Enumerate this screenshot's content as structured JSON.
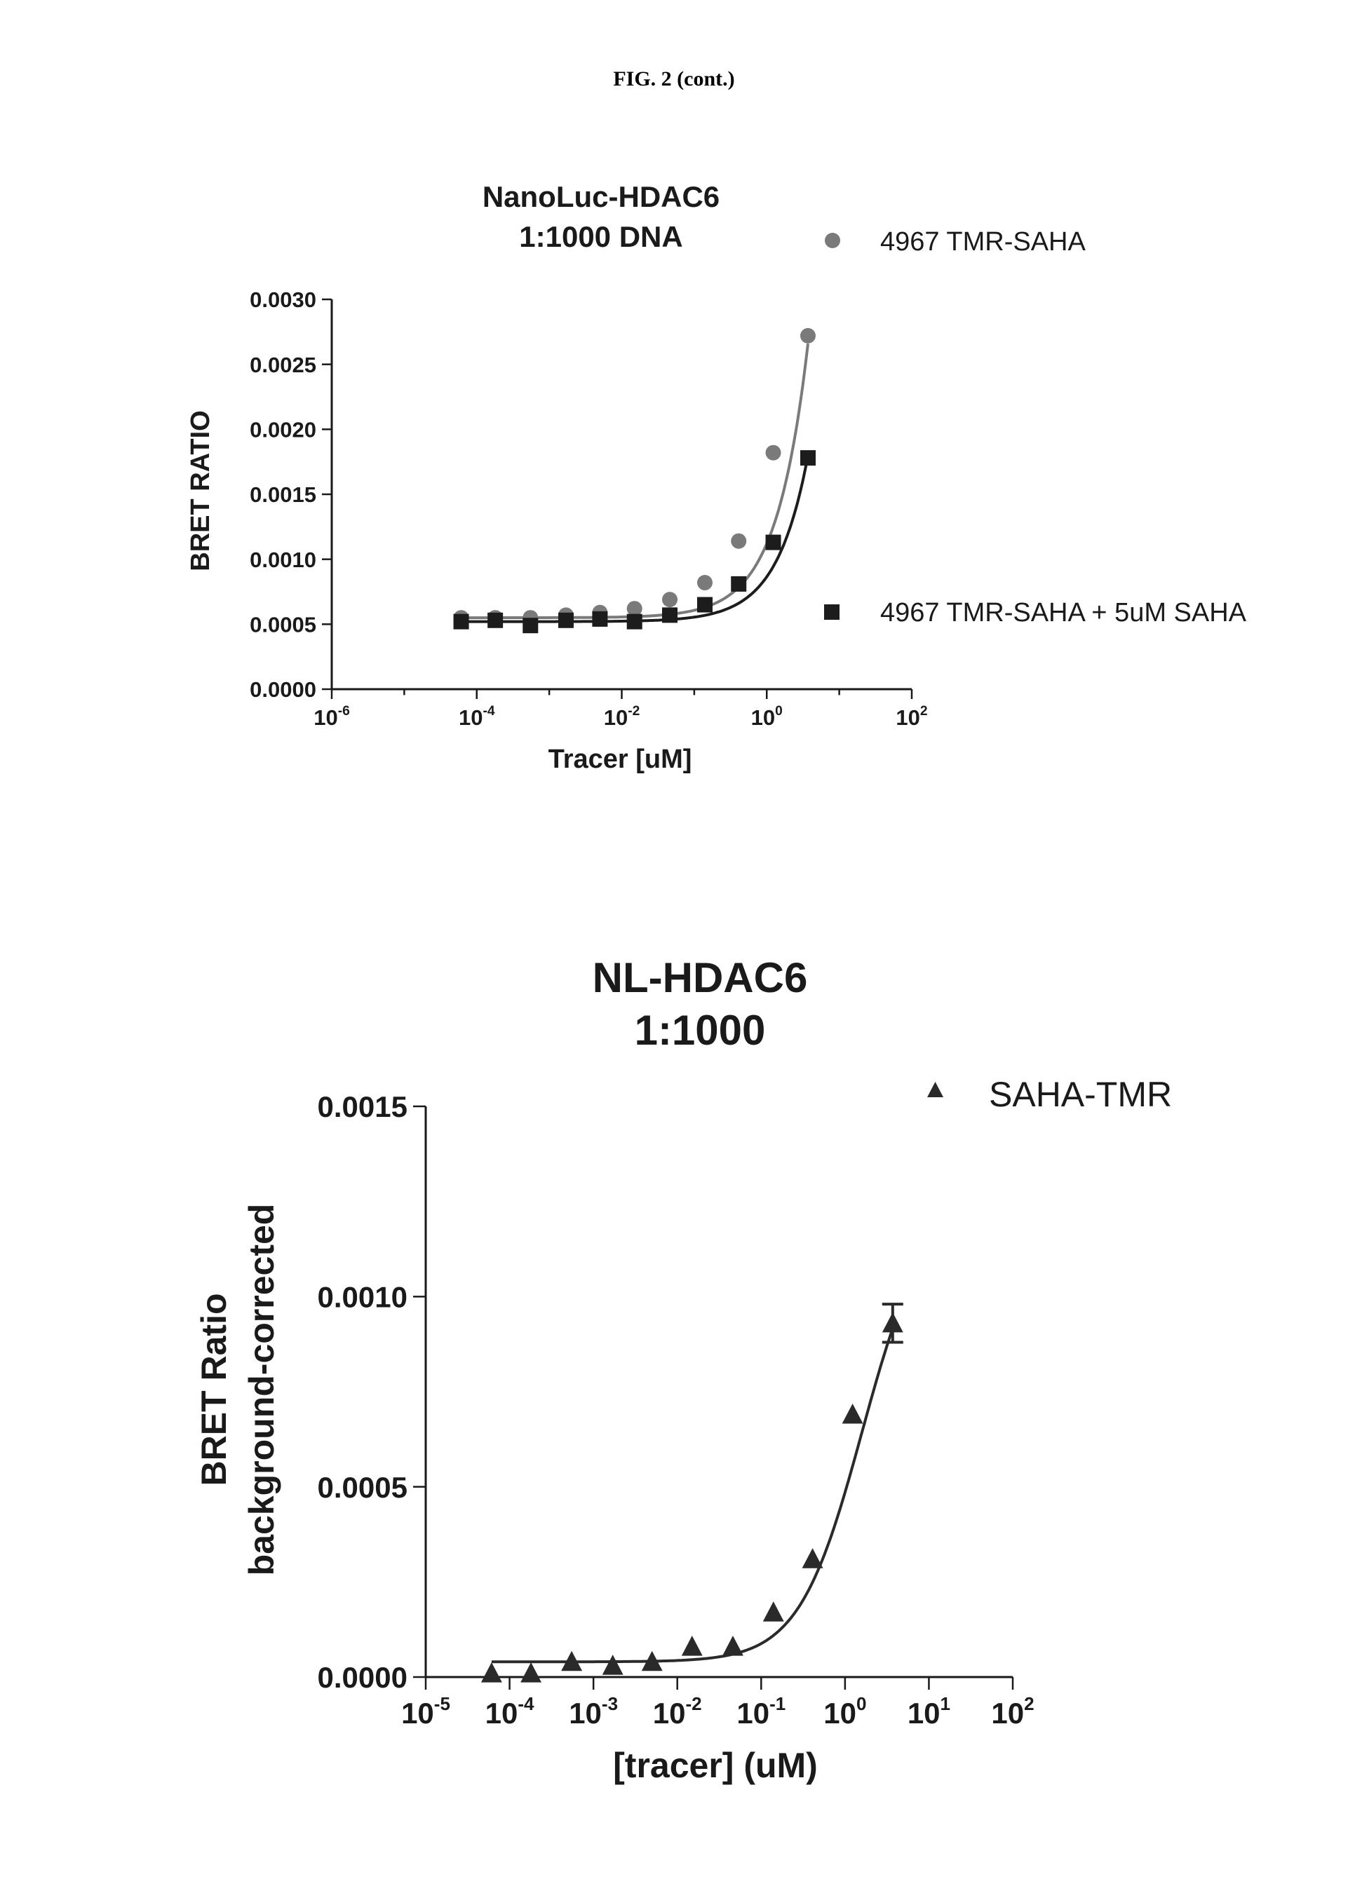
{
  "page": {
    "figure_label": "FIG. 2 (cont.)"
  },
  "chart_data": [
    {
      "type": "scatter",
      "title_lines": [
        "NanoLuc-HDAC6",
        "1:1000 DNA"
      ],
      "xlabel": "Tracer [uM]",
      "ylabel": "BRET RATIO",
      "x_scale": "log",
      "xlim": [
        1e-06,
        100
      ],
      "ylim": [
        0,
        0.003
      ],
      "x_ticks": [
        {
          "value": 1e-06,
          "base": "10",
          "exp": "-6"
        },
        {
          "value": 0.0001,
          "base": "10",
          "exp": "-4"
        },
        {
          "value": 0.01,
          "base": "10",
          "exp": "-2"
        },
        {
          "value": 1,
          "base": "10",
          "exp": "0"
        },
        {
          "value": 100,
          "base": "10",
          "exp": "2"
        }
      ],
      "y_ticks": [
        {
          "value": 0,
          "label": "0.0000"
        },
        {
          "value": 0.0005,
          "label": "0.0005"
        },
        {
          "value": 0.001,
          "label": "0.0010"
        },
        {
          "value": 0.0015,
          "label": "0.0015"
        },
        {
          "value": 0.002,
          "label": "0.0020"
        },
        {
          "value": 0.0025,
          "label": "0.0025"
        },
        {
          "value": 0.003,
          "label": "0.0030"
        }
      ],
      "series": [
        {
          "name": "4967 TMR-SAHA",
          "marker": "circle",
          "color": "#7a7a7a",
          "x": [
            6.1e-05,
            0.00018,
            0.00055,
            0.0017,
            0.005,
            0.015,
            0.046,
            0.14,
            0.41,
            1.23,
            3.7
          ],
          "y": [
            0.00055,
            0.00055,
            0.00055,
            0.00057,
            0.00059,
            0.00062,
            0.00069,
            0.00082,
            0.00114,
            0.00182,
            0.00272
          ],
          "fit": {
            "bottom": 0.00055,
            "slope": 0.00057
          }
        },
        {
          "name": "4967 TMR-SAHA + 5uM SAHA",
          "marker": "square",
          "color": "#1c1c1c",
          "x": [
            6.1e-05,
            0.00018,
            0.00055,
            0.0017,
            0.005,
            0.015,
            0.046,
            0.14,
            0.41,
            1.23,
            3.7
          ],
          "y": [
            0.00052,
            0.00053,
            0.00049,
            0.00053,
            0.00054,
            0.00052,
            0.00057,
            0.00065,
            0.00081,
            0.00113,
            0.00178
          ],
          "fit": {
            "bottom": 0.00052,
            "slope": 0.000345
          }
        }
      ]
    },
    {
      "type": "scatter",
      "title_lines": [
        "NL-HDAC6",
        "1:1000"
      ],
      "xlabel": "[tracer] (uM)",
      "ylabel_lines": [
        "BRET Ratio",
        "background-corrected"
      ],
      "x_scale": "log",
      "xlim": [
        1e-05,
        100
      ],
      "ylim": [
        0,
        0.0015
      ],
      "x_ticks": [
        {
          "value": 1e-05,
          "base": "10",
          "exp": "-5"
        },
        {
          "value": 0.0001,
          "base": "10",
          "exp": "-4"
        },
        {
          "value": 0.001,
          "base": "10",
          "exp": "-3"
        },
        {
          "value": 0.01,
          "base": "10",
          "exp": "-2"
        },
        {
          "value": 0.1,
          "base": "10",
          "exp": "-1"
        },
        {
          "value": 1,
          "base": "10",
          "exp": "0"
        },
        {
          "value": 10,
          "base": "10",
          "exp": "1"
        },
        {
          "value": 100,
          "base": "10",
          "exp": "2"
        }
      ],
      "y_ticks": [
        {
          "value": 0,
          "label": "0.0000"
        },
        {
          "value": 0.0005,
          "label": "0.0005"
        },
        {
          "value": 0.001,
          "label": "0.0010"
        },
        {
          "value": 0.0015,
          "label": "0.0015"
        }
      ],
      "series": [
        {
          "name": "SAHA-TMR",
          "marker": "triangle",
          "color": "#2a2a2a",
          "x": [
            6.1e-05,
            0.00018,
            0.00055,
            0.0017,
            0.005,
            0.015,
            0.046,
            0.14,
            0.41,
            1.23,
            3.7
          ],
          "y": [
            1e-05,
            1e-05,
            4e-05,
            3e-05,
            4e-05,
            8e-05,
            8e-05,
            0.00017,
            0.00031,
            0.00069,
            0.00093
          ],
          "error": [
            0,
            0,
            0,
            0,
            0,
            0,
            0,
            0,
            0,
            0,
            5e-05
          ],
          "fit": {
            "bottom": 4e-05,
            "top": 0.00125,
            "ec50": 1.6,
            "hill": 1.15
          }
        }
      ]
    }
  ]
}
